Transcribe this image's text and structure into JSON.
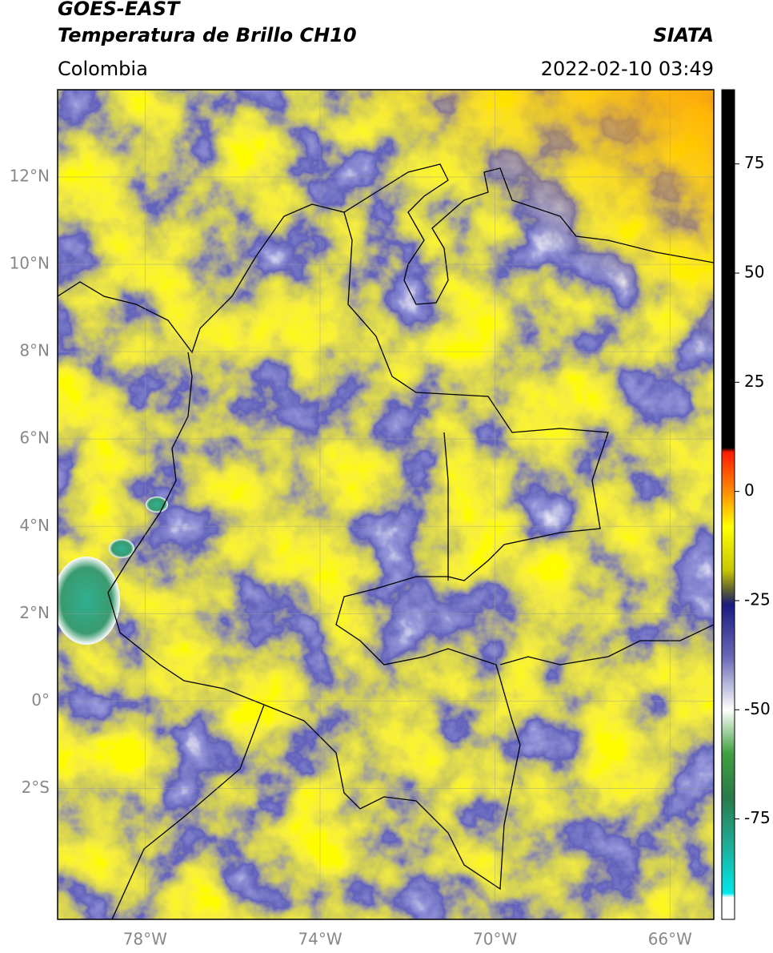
{
  "header": {
    "title": "GOES-EAST",
    "subtitle": "Temperatura de Brillo CH10",
    "source": "SIATA",
    "region": "Colombia",
    "datetime": "2022-02-10 03:49"
  },
  "map": {
    "xlim": [
      -80,
      -65
    ],
    "ylim": [
      -5,
      14
    ],
    "grid": true,
    "xticks": [
      {
        "value": -78,
        "label": "78°W"
      },
      {
        "value": -74,
        "label": "74°W"
      },
      {
        "value": -70,
        "label": "70°W"
      },
      {
        "value": -66,
        "label": "66°W"
      }
    ],
    "yticks": [
      {
        "value": 12,
        "label": "12°N"
      },
      {
        "value": 10,
        "label": "10°N"
      },
      {
        "value": 8,
        "label": "8°N"
      },
      {
        "value": 6,
        "label": "6°N"
      },
      {
        "value": 4,
        "label": "4°N"
      },
      {
        "value": 2,
        "label": "2°N"
      },
      {
        "value": 0,
        "label": "0°"
      },
      {
        "value": -2,
        "label": "2°S"
      }
    ]
  },
  "colorbar": {
    "lim": [
      -98,
      92
    ],
    "ticks": [
      75,
      50,
      25,
      0,
      -25,
      -50,
      -75
    ],
    "colormap": [
      {
        "value": 92,
        "color": "#000000"
      },
      {
        "value": 10,
        "color": "#000000"
      },
      {
        "value": 9,
        "color": "#ff1a00"
      },
      {
        "value": 0,
        "color": "#ff8c00"
      },
      {
        "value": -8,
        "color": "#ffff00"
      },
      {
        "value": -18,
        "color": "#c8c800"
      },
      {
        "value": -23,
        "color": "#55553a"
      },
      {
        "value": -26,
        "color": "#1a1a80"
      },
      {
        "value": -38,
        "color": "#6a6ab8"
      },
      {
        "value": -50,
        "color": "#ffffff"
      },
      {
        "value": -60,
        "color": "#40a040"
      },
      {
        "value": -70,
        "color": "#2a7a48"
      },
      {
        "value": -80,
        "color": "#20a890"
      },
      {
        "value": -92,
        "color": "#00e8e8"
      },
      {
        "value": -93,
        "color": "#ffffff"
      },
      {
        "value": -98,
        "color": "#ffffff"
      }
    ]
  }
}
